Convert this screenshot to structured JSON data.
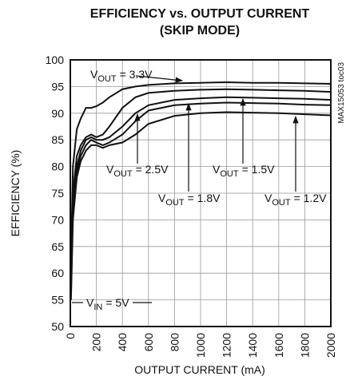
{
  "chart_data": {
    "type": "line",
    "title": "EFFICIENCY vs. OUTPUT CURRENT",
    "subtitle": "(SKIP MODE)",
    "x_label": "OUTPUT CURRENT (mA)",
    "y_label": "EFFICIENCY (%)",
    "side_note": "MAX15053 toc03",
    "x": [
      5,
      20,
      50,
      80,
      120,
      160,
      200,
      250,
      300,
      400,
      500,
      600,
      800,
      1000,
      1200,
      1400,
      1600,
      1800,
      2000
    ],
    "series": [
      {
        "name": "3.3V",
        "color": "#111111",
        "values": [
          62,
          80,
          87,
          89,
          91,
          91,
          91.3,
          92,
          93,
          94.5,
          95,
          95.3,
          95.6,
          95.7,
          95.8,
          95.7,
          95.7,
          95.6,
          95.5
        ]
      },
      {
        "name": "2.5V",
        "color": "#111111",
        "values": [
          58,
          75,
          82,
          84,
          85.5,
          86,
          85.5,
          86,
          87.5,
          91,
          93,
          93.8,
          94.2,
          94.4,
          94.5,
          94.4,
          94.3,
          94.2,
          94.0
        ]
      },
      {
        "name": "1.8V",
        "color": "#111111",
        "values": [
          57,
          73,
          80,
          83,
          85,
          85.5,
          85,
          85,
          85.5,
          87.5,
          90,
          91.5,
          92.5,
          92.8,
          93,
          92.9,
          92.8,
          92.7,
          92.5
        ]
      },
      {
        "name": "1.5V",
        "color": "#111111",
        "values": [
          56,
          72,
          79,
          82,
          84,
          85,
          84.5,
          84,
          84.5,
          86,
          88.5,
          90.5,
          91.5,
          91.8,
          92,
          91.9,
          91.8,
          91.6,
          91.5
        ]
      },
      {
        "name": "1.2V",
        "color": "#111111",
        "values": [
          55,
          70,
          78,
          81,
          83,
          84,
          84,
          83.5,
          84,
          84.5,
          86,
          88,
          89.5,
          90,
          90.2,
          90.1,
          90,
          89.8,
          89.6
        ]
      }
    ],
    "annotations": [
      {
        "base": "V",
        "sub": "OUT",
        "text": "= 3.3V"
      },
      {
        "base": "V",
        "sub": "OUT",
        "text": "= 2.5V"
      },
      {
        "base": "V",
        "sub": "OUT",
        "text": "= 1.8V"
      },
      {
        "base": "V",
        "sub": "OUT",
        "text": "= 1.5V"
      },
      {
        "base": "V",
        "sub": "OUT",
        "text": "= 1.2V"
      },
      {
        "base": "V",
        "sub": "IN",
        "text": "= 5V"
      }
    ],
    "xlim": [
      0,
      2000
    ],
    "xticks": [
      0,
      200,
      400,
      600,
      800,
      1000,
      1200,
      1400,
      1600,
      1800,
      2000
    ],
    "ylim": [
      50,
      100
    ],
    "yticks": [
      50,
      55,
      60,
      65,
      70,
      75,
      80,
      85,
      90,
      95,
      100
    ],
    "grid": true
  }
}
